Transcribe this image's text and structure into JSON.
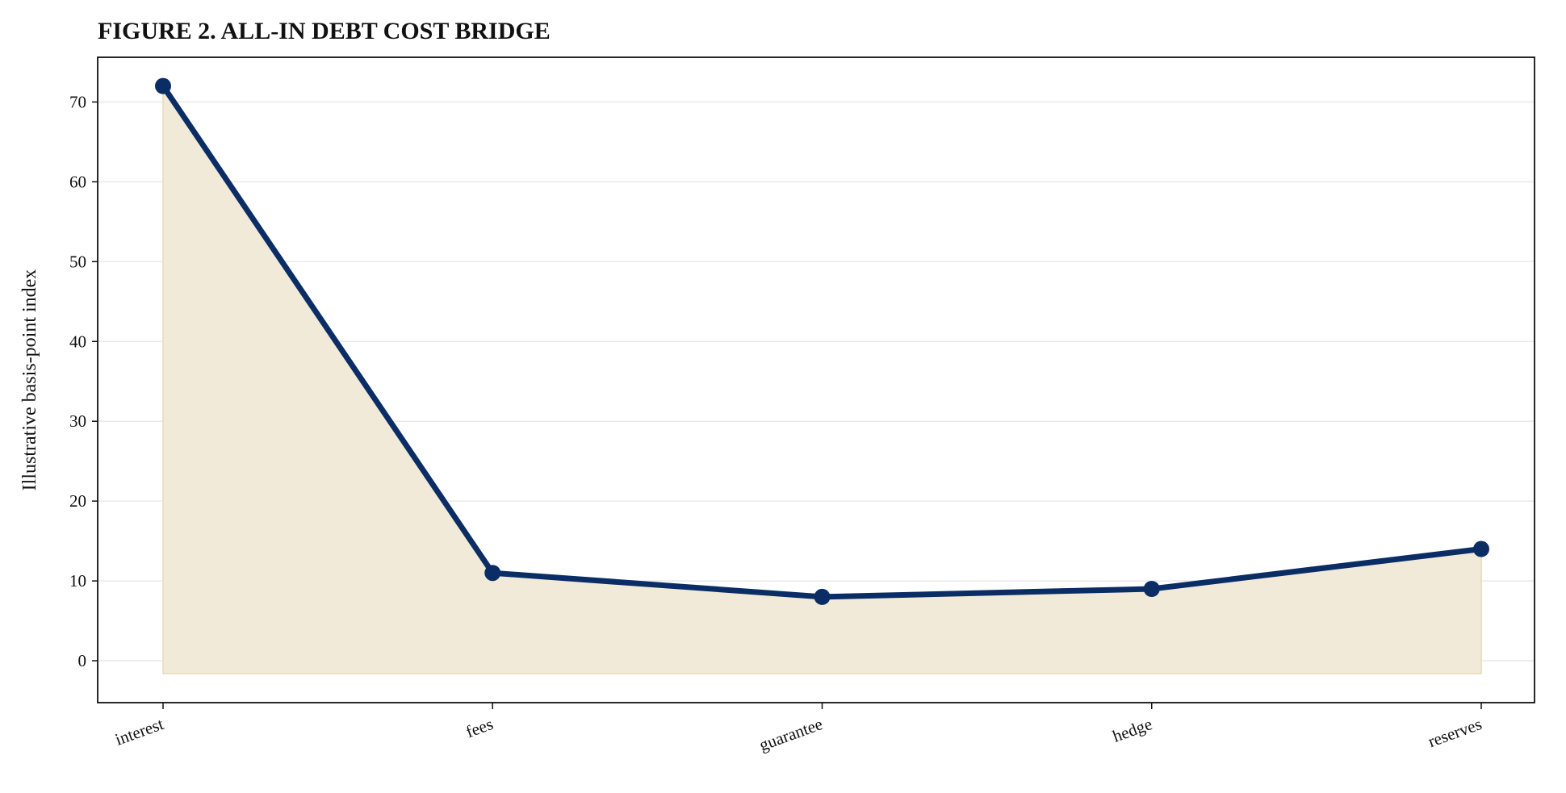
{
  "chart_data": {
    "type": "area_line",
    "title": "FIGURE 2. ALL-IN DEBT COST BRIDGE",
    "y_label": "Illustrative basis-point index",
    "categories": [
      "interest",
      "fees",
      "guarantee",
      "hedge",
      "reserves"
    ],
    "values": [
      72,
      11,
      8,
      9,
      14
    ],
    "color": "#0b2d66",
    "fill_color": "#f2ead9",
    "ylim": [
      -5.25,
      75.6
    ],
    "yticks": [
      0,
      10,
      20,
      30,
      40,
      50,
      60,
      70
    ],
    "grid": true
  }
}
